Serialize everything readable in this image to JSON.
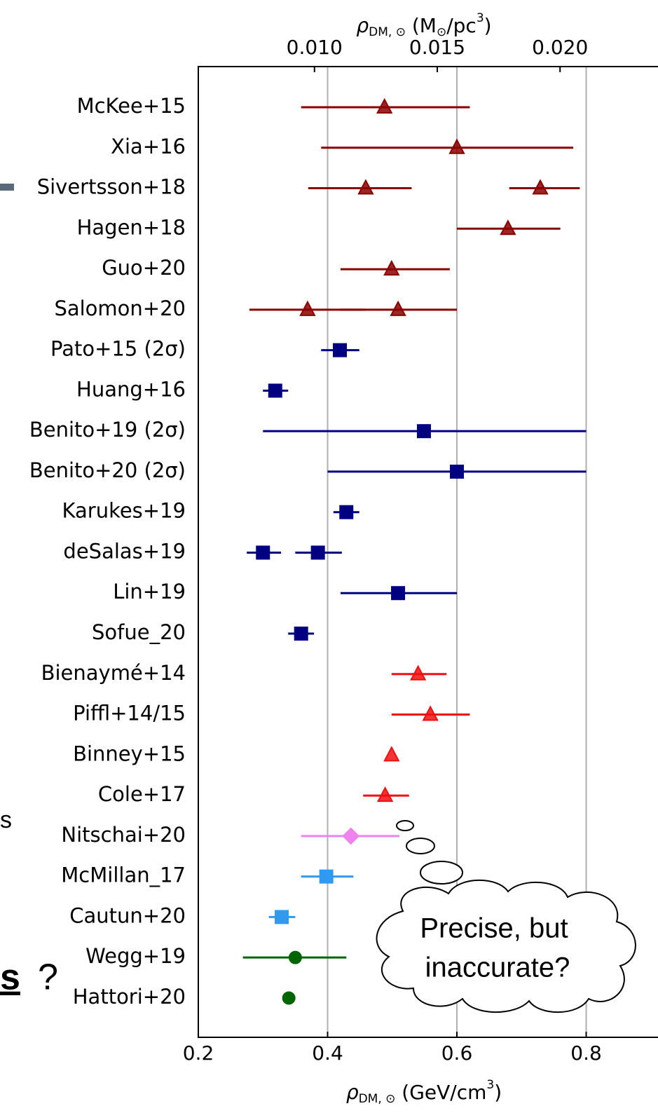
{
  "chart_data": {
    "type": "errorbar",
    "categories": [
      "McKee+15",
      "Xia+16",
      "Sivertsson+18",
      "Hagen+18",
      "Guo+20",
      "Salomon+20",
      "Pato+15 (2σ)",
      "Huang+16",
      "Benito+19 (2σ)",
      "Benito+20 (2σ)",
      "Karukes+19",
      "deSalas+19",
      "Lin+19",
      "Sofue_20",
      "Bienaymé+14",
      "Piffl+14/15",
      "Binney+15",
      "Cole+17",
      "Nitschai+20",
      "McMillan_17",
      "Cautun+20",
      "Wegg+19",
      "Hattori+20"
    ],
    "series": [
      {
        "color": "#8b0000",
        "marker": "triangle",
        "values": [
          0.488,
          0.6,
          0.459,
          0.679,
          0.499,
          0.369,
          null,
          null,
          null,
          null,
          null,
          null,
          null,
          null,
          null,
          null,
          null,
          null,
          null,
          null,
          null,
          null,
          null
        ],
        "lower": [
          0.359,
          0.39,
          0.37,
          0.6,
          0.42,
          0.279,
          null,
          null,
          null,
          null,
          null,
          null,
          null,
          null,
          null,
          null,
          null,
          null,
          null,
          null,
          null,
          null,
          null
        ],
        "upper": [
          0.62,
          0.78,
          0.53,
          0.76,
          0.589,
          0.459,
          null,
          null,
          null,
          null,
          null,
          null,
          null,
          null,
          null,
          null,
          null,
          null,
          null,
          null,
          null,
          null,
          null
        ]
      },
      {
        "color": "#8b0000",
        "marker": "triangle",
        "values": [
          null,
          null,
          0.729,
          null,
          null,
          0.509,
          null,
          null,
          null,
          null,
          null,
          null,
          null,
          null,
          null,
          null,
          null,
          null,
          null,
          null,
          null,
          null,
          null
        ],
        "lower": [
          null,
          null,
          0.681,
          null,
          null,
          0.42,
          null,
          null,
          null,
          null,
          null,
          null,
          null,
          null,
          null,
          null,
          null,
          null,
          null,
          null,
          null,
          null,
          null
        ],
        "upper": [
          null,
          null,
          0.79,
          null,
          null,
          0.6,
          null,
          null,
          null,
          null,
          null,
          null,
          null,
          null,
          null,
          null,
          null,
          null,
          null,
          null,
          null,
          null,
          null
        ]
      },
      {
        "color": "#000080",
        "marker": "square",
        "values": [
          null,
          null,
          null,
          null,
          null,
          null,
          0.419,
          0.319,
          0.549,
          0.6,
          0.429,
          0.3,
          0.509,
          0.359,
          null,
          null,
          null,
          null,
          null,
          null,
          null,
          null,
          null
        ],
        "lower": [
          null,
          null,
          null,
          null,
          null,
          null,
          0.39,
          0.3,
          0.3,
          0.4,
          0.409,
          0.275,
          0.42,
          0.339,
          null,
          null,
          null,
          null,
          null,
          null,
          null,
          null,
          null
        ],
        "upper": [
          null,
          null,
          null,
          null,
          null,
          null,
          0.449,
          0.339,
          0.8,
          0.8,
          0.449,
          0.328,
          0.6,
          0.379,
          null,
          null,
          null,
          null,
          null,
          null,
          null,
          null,
          null
        ]
      },
      {
        "color": "#000080",
        "marker": "square",
        "values": [
          null,
          null,
          null,
          null,
          null,
          null,
          null,
          null,
          null,
          null,
          null,
          0.385,
          null,
          null,
          null,
          null,
          null,
          null,
          null,
          null,
          null,
          null,
          null
        ],
        "lower": [
          null,
          null,
          null,
          null,
          null,
          null,
          null,
          null,
          null,
          null,
          null,
          0.35,
          null,
          null,
          null,
          null,
          null,
          null,
          null,
          null,
          null,
          null,
          null
        ],
        "upper": [
          null,
          null,
          null,
          null,
          null,
          null,
          null,
          null,
          null,
          null,
          null,
          0.422,
          null,
          null,
          null,
          null,
          null,
          null,
          null,
          null,
          null,
          null,
          null
        ]
      },
      {
        "color": "#ee1111",
        "marker": "triangle",
        "values": [
          null,
          null,
          null,
          null,
          null,
          null,
          null,
          null,
          null,
          null,
          null,
          null,
          null,
          null,
          0.54,
          0.559,
          0.499,
          0.489,
          null,
          null,
          null,
          null,
          null
        ],
        "lower": [
          null,
          null,
          null,
          null,
          null,
          null,
          null,
          null,
          null,
          null,
          null,
          null,
          null,
          null,
          0.499,
          0.499,
          null,
          0.455,
          null,
          null,
          null,
          null,
          null
        ],
        "upper": [
          null,
          null,
          null,
          null,
          null,
          null,
          null,
          null,
          null,
          null,
          null,
          null,
          null,
          null,
          0.584,
          0.62,
          null,
          0.526,
          null,
          null,
          null,
          null,
          null
        ]
      },
      {
        "color": "#ee82ee",
        "marker": "diamond",
        "values": [
          null,
          null,
          null,
          null,
          null,
          null,
          null,
          null,
          null,
          null,
          null,
          null,
          null,
          null,
          null,
          null,
          null,
          null,
          0.436,
          null,
          null,
          null,
          null
        ],
        "lower": [
          null,
          null,
          null,
          null,
          null,
          null,
          null,
          null,
          null,
          null,
          null,
          null,
          null,
          null,
          null,
          null,
          null,
          null,
          0.359,
          null,
          null,
          null,
          null
        ],
        "upper": [
          null,
          null,
          null,
          null,
          null,
          null,
          null,
          null,
          null,
          null,
          null,
          null,
          null,
          null,
          null,
          null,
          null,
          null,
          0.511,
          null,
          null,
          null,
          null
        ]
      },
      {
        "color": "#3399ee",
        "marker": "square",
        "values": [
          null,
          null,
          null,
          null,
          null,
          null,
          null,
          null,
          null,
          null,
          null,
          null,
          null,
          null,
          null,
          null,
          null,
          null,
          null,
          0.398,
          0.329,
          null,
          null
        ],
        "lower": [
          null,
          null,
          null,
          null,
          null,
          null,
          null,
          null,
          null,
          null,
          null,
          null,
          null,
          null,
          null,
          null,
          null,
          null,
          null,
          0.359,
          0.309,
          null,
          null
        ],
        "upper": [
          null,
          null,
          null,
          null,
          null,
          null,
          null,
          null,
          null,
          null,
          null,
          null,
          null,
          null,
          null,
          null,
          null,
          null,
          null,
          0.44,
          0.35,
          null,
          null
        ]
      },
      {
        "color": "#006400",
        "marker": "circle",
        "values": [
          null,
          null,
          null,
          null,
          null,
          null,
          null,
          null,
          null,
          null,
          null,
          null,
          null,
          null,
          null,
          null,
          null,
          null,
          null,
          null,
          null,
          0.35,
          0.34
        ],
        "lower": [
          null,
          null,
          null,
          null,
          null,
          null,
          null,
          null,
          null,
          null,
          null,
          null,
          null,
          null,
          null,
          null,
          null,
          null,
          null,
          null,
          null,
          0.269,
          null
        ],
        "upper": [
          null,
          null,
          null,
          null,
          null,
          null,
          null,
          null,
          null,
          null,
          null,
          null,
          null,
          null,
          null,
          null,
          null,
          null,
          null,
          null,
          null,
          0.429,
          null
        ]
      }
    ],
    "xlim": [
      0.2,
      0.91
    ],
    "xticks": [
      0.2,
      0.4,
      0.6,
      0.8
    ],
    "x2lim": [
      0.00527,
      0.02396
    ],
    "x2ticks": [
      {
        "value": 0.01,
        "label": "0.010"
      },
      {
        "value": 0.015,
        "label": "0.015"
      },
      {
        "value": 0.02,
        "label": "0.020"
      }
    ],
    "xlabel": [
      "ρ",
      "DM, ⊙",
      " (GeV/cm",
      "3",
      ")"
    ],
    "x2label": [
      "ρ",
      "DM, ⊙",
      " (M",
      "⊙",
      "/pc",
      "3",
      ")"
    ],
    "grid": true,
    "annotation": [
      "Precise, but",
      "inaccurate?"
    ],
    "side_texts": [
      "s",
      "s",
      "?"
    ]
  }
}
